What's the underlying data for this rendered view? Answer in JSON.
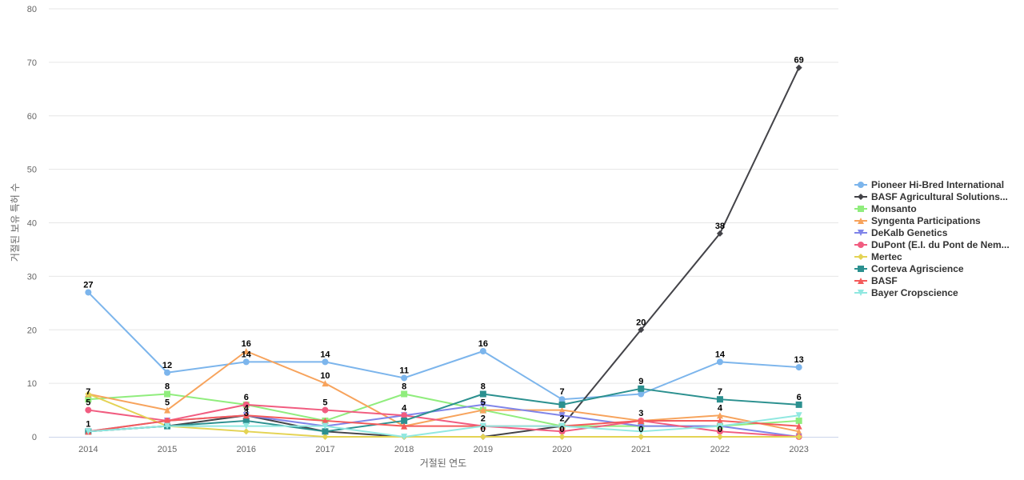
{
  "chart_data": {
    "type": "line",
    "xlabel": "거절된 연도",
    "ylabel": "거절된 보유 특허 수",
    "ylim": [
      0,
      80
    ],
    "yticks": [
      0,
      10,
      20,
      30,
      40,
      50,
      60,
      70,
      80
    ],
    "x": [
      "2014",
      "2015",
      "2016",
      "2017",
      "2018",
      "2019",
      "2020",
      "2021",
      "2022",
      "2023"
    ],
    "grid": true,
    "legend_position": "right",
    "series": [
      {
        "name": "Pioneer Hi-Bred International",
        "color": "#7cb5ec",
        "marker": "circle",
        "values": [
          27,
          12,
          14,
          14,
          11,
          16,
          7,
          8,
          14,
          13
        ],
        "labels": [
          true,
          true,
          true,
          true,
          true,
          true,
          true,
          false,
          true,
          true
        ]
      },
      {
        "name": "BASF Agricultural Solutions...",
        "color": "#434348",
        "marker": "diamond",
        "values": [
          1,
          2,
          4,
          1,
          0,
          0,
          2,
          20,
          38,
          69
        ],
        "labels": [
          false,
          false,
          true,
          false,
          false,
          false,
          true,
          true,
          true,
          true
        ]
      },
      {
        "name": "Monsanto",
        "color": "#90ed7d",
        "marker": "square",
        "values": [
          7,
          8,
          6,
          3,
          8,
          5,
          2,
          2,
          2,
          3
        ],
        "labels": [
          true,
          true,
          true,
          false,
          true,
          false,
          false,
          false,
          false,
          false
        ]
      },
      {
        "name": "Syngenta Participations",
        "color": "#f7a35c",
        "marker": "triangle",
        "values": [
          8,
          5,
          16,
          10,
          2,
          5,
          5,
          3,
          4,
          1
        ],
        "labels": [
          false,
          true,
          true,
          true,
          false,
          true,
          false,
          false,
          true,
          false
        ]
      },
      {
        "name": "DeKalb Genetics",
        "color": "#8085e9",
        "marker": "triangle-down",
        "values": [
          1,
          3,
          4,
          2,
          4,
          6,
          4,
          2,
          2,
          0
        ],
        "labels": [
          false,
          false,
          false,
          false,
          true,
          false,
          false,
          false,
          false,
          false
        ]
      },
      {
        "name": "DuPont (E.I. du Pont de Nem...",
        "color": "#f15c80",
        "marker": "circle",
        "values": [
          5,
          3,
          6,
          5,
          4,
          2,
          1,
          3,
          1,
          0
        ],
        "labels": [
          true,
          false,
          false,
          true,
          false,
          false,
          false,
          false,
          false,
          false
        ]
      },
      {
        "name": "Mertec",
        "color": "#e4d354",
        "marker": "diamond",
        "values": [
          8,
          2,
          1,
          0,
          0,
          0,
          0,
          0,
          0,
          0
        ],
        "labels": [
          false,
          false,
          false,
          false,
          false,
          true,
          true,
          true,
          true,
          false
        ]
      },
      {
        "name": "Corteva Agriscience",
        "color": "#2b908f",
        "marker": "square",
        "values": [
          1,
          2,
          3,
          1,
          3,
          8,
          6,
          9,
          7,
          6
        ],
        "labels": [
          true,
          false,
          true,
          false,
          false,
          true,
          false,
          true,
          true,
          true
        ]
      },
      {
        "name": "BASF",
        "color": "#f45b5b",
        "marker": "triangle",
        "values": [
          1,
          3,
          4,
          3,
          2,
          2,
          2,
          3,
          3,
          2
        ],
        "labels": [
          false,
          false,
          false,
          false,
          false,
          false,
          false,
          true,
          false,
          false
        ]
      },
      {
        "name": "Bayer Cropscience",
        "color": "#91e8e1",
        "marker": "triangle-down",
        "values": [
          1,
          2,
          2,
          2,
          0,
          2,
          2,
          1,
          2,
          4
        ],
        "labels": [
          false,
          false,
          false,
          false,
          false,
          true,
          false,
          false,
          false,
          false
        ]
      }
    ]
  }
}
